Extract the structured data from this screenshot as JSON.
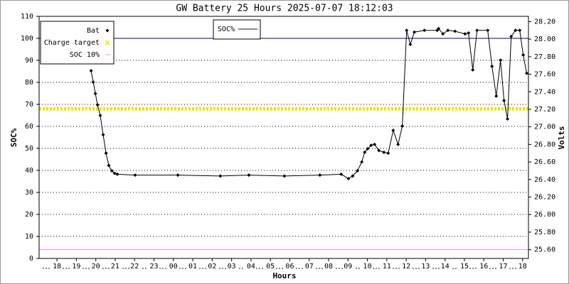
{
  "chart_data": {
    "type": "line",
    "title": "GW Battery 25 Hours 2025-07-07 18:12:03",
    "x_label": "Hours",
    "y_label": "SOC%",
    "y2_label": "Volts",
    "xlim": [
      -0.92,
      24.3
    ],
    "xticks": [
      {
        "value": 0,
        "label": "18"
      },
      {
        "value": 1,
        "label": "19"
      },
      {
        "value": 2,
        "label": "20"
      },
      {
        "value": 3,
        "label": "21"
      },
      {
        "value": 4,
        "label": "22"
      },
      {
        "value": 5,
        "label": "23"
      },
      {
        "value": 6,
        "label": "00"
      },
      {
        "value": 7,
        "label": "01"
      },
      {
        "value": 8,
        "label": "02"
      },
      {
        "value": 9,
        "label": "03"
      },
      {
        "value": 10,
        "label": "04"
      },
      {
        "value": 11,
        "label": "05"
      },
      {
        "value": 12,
        "label": "06"
      },
      {
        "value": 13,
        "label": "07"
      },
      {
        "value": 14,
        "label": "08"
      },
      {
        "value": 15,
        "label": "09"
      },
      {
        "value": 16,
        "label": "10"
      },
      {
        "value": 17,
        "label": "11"
      },
      {
        "value": 18,
        "label": "12"
      },
      {
        "value": 19,
        "label": "13"
      },
      {
        "value": 20,
        "label": "14"
      },
      {
        "value": 21,
        "label": "15"
      },
      {
        "value": 22,
        "label": "16"
      },
      {
        "value": 23,
        "label": "17"
      },
      {
        "value": 24,
        "label": "18"
      }
    ],
    "ylim": [
      0,
      110
    ],
    "yticks": [
      0,
      10,
      20,
      30,
      40,
      50,
      60,
      70,
      80,
      90,
      100,
      110
    ],
    "y2lim": [
      25.5,
      28.26
    ],
    "y2ticks": [
      {
        "value": 25.6,
        "label": "25.60"
      },
      {
        "value": 25.8,
        "label": "25.80"
      },
      {
        "value": 26.0,
        "label": "26.00"
      },
      {
        "value": 26.2,
        "label": "26.20"
      },
      {
        "value": 26.4,
        "label": "26.40"
      },
      {
        "value": 26.6,
        "label": "26.60"
      },
      {
        "value": 26.8,
        "label": "26.80"
      },
      {
        "value": 27.0,
        "label": "27.00"
      },
      {
        "value": 27.2,
        "label": "27.20"
      },
      {
        "value": 27.4,
        "label": "27.40"
      },
      {
        "value": 27.6,
        "label": "27.60"
      },
      {
        "value": 27.8,
        "label": "27.80"
      },
      {
        "value": 28.0,
        "label": "28.00"
      },
      {
        "value": 28.2,
        "label": "28.20"
      }
    ],
    "grid": true,
    "series": [
      {
        "name": "Bat",
        "color": "#000000",
        "axis": "y2",
        "x": [
          1.76,
          1.87,
          1.98,
          2.09,
          2.23,
          2.38,
          2.53,
          2.67,
          2.82,
          2.97,
          3.11,
          4.03,
          6.23,
          8.42,
          9.89,
          11.72,
          13.55,
          14.65,
          15.02,
          15.24,
          15.49,
          15.71,
          15.86,
          16.01,
          16.19,
          16.37,
          16.59,
          16.85,
          17.07,
          17.33,
          17.58,
          17.8,
          18.02,
          18.21,
          18.42,
          18.94,
          19.6,
          19.67,
          19.89,
          20.15,
          20.51,
          21.03,
          21.21,
          21.43,
          21.65,
          22.2,
          22.42,
          22.64,
          22.86,
          23.04,
          23.22,
          23.41,
          23.63,
          23.85,
          24.03,
          24.21
        ],
        "values": [
          27.64,
          27.51,
          27.38,
          27.25,
          27.13,
          26.91,
          26.7,
          26.56,
          26.5,
          26.47,
          26.46,
          26.45,
          26.45,
          26.44,
          26.45,
          26.44,
          26.45,
          26.46,
          26.41,
          26.44,
          26.5,
          26.6,
          26.71,
          26.75,
          26.79,
          26.8,
          26.73,
          26.71,
          26.7,
          26.96,
          26.8,
          27.01,
          28.1,
          27.94,
          28.08,
          28.1,
          28.1,
          28.12,
          28.06,
          28.1,
          28.09,
          28.06,
          28.07,
          27.65,
          28.1,
          28.1,
          27.69,
          27.35,
          27.76,
          27.3,
          27.09,
          28.03,
          28.1,
          28.1,
          27.82,
          27.61
        ]
      }
    ],
    "reference_lines": [
      {
        "name": "SOC%",
        "value": 100,
        "color": "#000080"
      },
      {
        "name": "Charge target",
        "value": 68,
        "color": "#e8e800"
      },
      {
        "name": "SOC 10%",
        "value": 4,
        "color": "#ff80ff"
      }
    ]
  }
}
